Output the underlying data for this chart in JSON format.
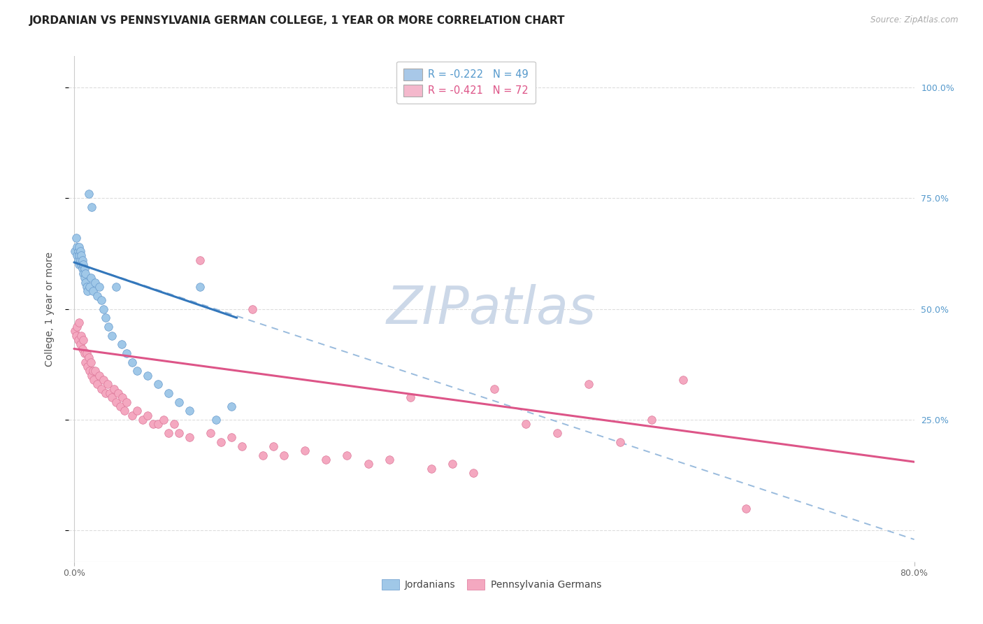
{
  "title": "JORDANIAN VS PENNSYLVANIA GERMAN COLLEGE, 1 YEAR OR MORE CORRELATION CHART",
  "source": "Source: ZipAtlas.com",
  "ylabel_label": "College, 1 year or more",
  "watermark": "ZIPatlas",
  "legend_entries": [
    {
      "label": "R = -0.222   N = 49",
      "facecolor": "#a8c8e8",
      "edgecolor": "#aaaaaa"
    },
    {
      "label": "R = -0.421   N = 72",
      "facecolor": "#f4b8cc",
      "edgecolor": "#aaaaaa"
    }
  ],
  "jordanians_scatter": {
    "color": "#a0c8e8",
    "edgecolor": "#6699cc",
    "x": [
      0.001,
      0.002,
      0.003,
      0.003,
      0.004,
      0.004,
      0.005,
      0.005,
      0.005,
      0.006,
      0.006,
      0.007,
      0.007,
      0.008,
      0.008,
      0.009,
      0.009,
      0.01,
      0.01,
      0.011,
      0.011,
      0.012,
      0.013,
      0.014,
      0.015,
      0.016,
      0.017,
      0.018,
      0.02,
      0.022,
      0.024,
      0.026,
      0.028,
      0.03,
      0.033,
      0.036,
      0.04,
      0.045,
      0.05,
      0.055,
      0.06,
      0.07,
      0.08,
      0.09,
      0.1,
      0.11,
      0.12,
      0.135,
      0.15
    ],
    "y": [
      0.63,
      0.66,
      0.62,
      0.64,
      0.61,
      0.63,
      0.6,
      0.62,
      0.64,
      0.61,
      0.63,
      0.6,
      0.62,
      0.59,
      0.61,
      0.58,
      0.6,
      0.57,
      0.59,
      0.56,
      0.58,
      0.55,
      0.54,
      0.76,
      0.55,
      0.57,
      0.73,
      0.54,
      0.56,
      0.53,
      0.55,
      0.52,
      0.5,
      0.48,
      0.46,
      0.44,
      0.55,
      0.42,
      0.4,
      0.38,
      0.36,
      0.35,
      0.33,
      0.31,
      0.29,
      0.27,
      0.55,
      0.25,
      0.28
    ]
  },
  "penn_german_scatter": {
    "color": "#f4a8c0",
    "edgecolor": "#dd7799",
    "x": [
      0.001,
      0.002,
      0.003,
      0.004,
      0.005,
      0.006,
      0.007,
      0.008,
      0.009,
      0.01,
      0.011,
      0.012,
      0.013,
      0.014,
      0.015,
      0.016,
      0.017,
      0.018,
      0.019,
      0.02,
      0.022,
      0.024,
      0.026,
      0.028,
      0.03,
      0.032,
      0.034,
      0.036,
      0.038,
      0.04,
      0.042,
      0.044,
      0.046,
      0.048,
      0.05,
      0.055,
      0.06,
      0.065,
      0.07,
      0.075,
      0.08,
      0.085,
      0.09,
      0.095,
      0.1,
      0.11,
      0.12,
      0.13,
      0.14,
      0.15,
      0.16,
      0.17,
      0.18,
      0.19,
      0.2,
      0.22,
      0.24,
      0.26,
      0.28,
      0.3,
      0.32,
      0.34,
      0.36,
      0.38,
      0.4,
      0.43,
      0.46,
      0.49,
      0.52,
      0.55,
      0.58,
      0.64
    ],
    "y": [
      0.45,
      0.44,
      0.46,
      0.43,
      0.47,
      0.42,
      0.44,
      0.41,
      0.43,
      0.4,
      0.38,
      0.4,
      0.37,
      0.39,
      0.36,
      0.38,
      0.35,
      0.36,
      0.34,
      0.36,
      0.33,
      0.35,
      0.32,
      0.34,
      0.31,
      0.33,
      0.31,
      0.3,
      0.32,
      0.29,
      0.31,
      0.28,
      0.3,
      0.27,
      0.29,
      0.26,
      0.27,
      0.25,
      0.26,
      0.24,
      0.24,
      0.25,
      0.22,
      0.24,
      0.22,
      0.21,
      0.61,
      0.22,
      0.2,
      0.21,
      0.19,
      0.5,
      0.17,
      0.19,
      0.17,
      0.18,
      0.16,
      0.17,
      0.15,
      0.16,
      0.3,
      0.14,
      0.15,
      0.13,
      0.32,
      0.24,
      0.22,
      0.33,
      0.2,
      0.25,
      0.34,
      0.05
    ]
  },
  "blue_trendline": {
    "x_start": 0.0,
    "x_end": 0.155,
    "y_start": 0.605,
    "y_end": 0.48,
    "color": "#3377bb",
    "linewidth": 2.2
  },
  "pink_trendline": {
    "x_start": 0.0,
    "x_end": 0.8,
    "y_start": 0.41,
    "y_end": 0.155,
    "color": "#dd5588",
    "linewidth": 2.2
  },
  "dashed_trendline": {
    "x_start": 0.0,
    "x_end": 0.8,
    "y_start": 0.605,
    "y_end": -0.02,
    "color": "#99bbdd",
    "linewidth": 1.4
  },
  "xlim": [
    -0.005,
    0.8
  ],
  "ylim": [
    -0.07,
    1.07
  ],
  "xtick_positions": [
    0.0,
    0.8
  ],
  "xtick_labels": [
    "0.0%",
    "80.0%"
  ],
  "ytick_positions": [
    0.0,
    0.25,
    0.5,
    0.75,
    1.0
  ],
  "right_ytick_labels": [
    "",
    "25.0%",
    "50.0%",
    "75.0%",
    "100.0%"
  ],
  "background_color": "#ffffff",
  "grid_color": "#dddddd",
  "watermark_color": "#ccd8e8",
  "watermark_fontsize": 54,
  "title_fontsize": 11,
  "axis_label_fontsize": 10,
  "tick_fontsize": 9,
  "right_ytick_color": "#5599cc",
  "legend_text_color_1": "#5599cc",
  "legend_text_color_2": "#dd5588"
}
